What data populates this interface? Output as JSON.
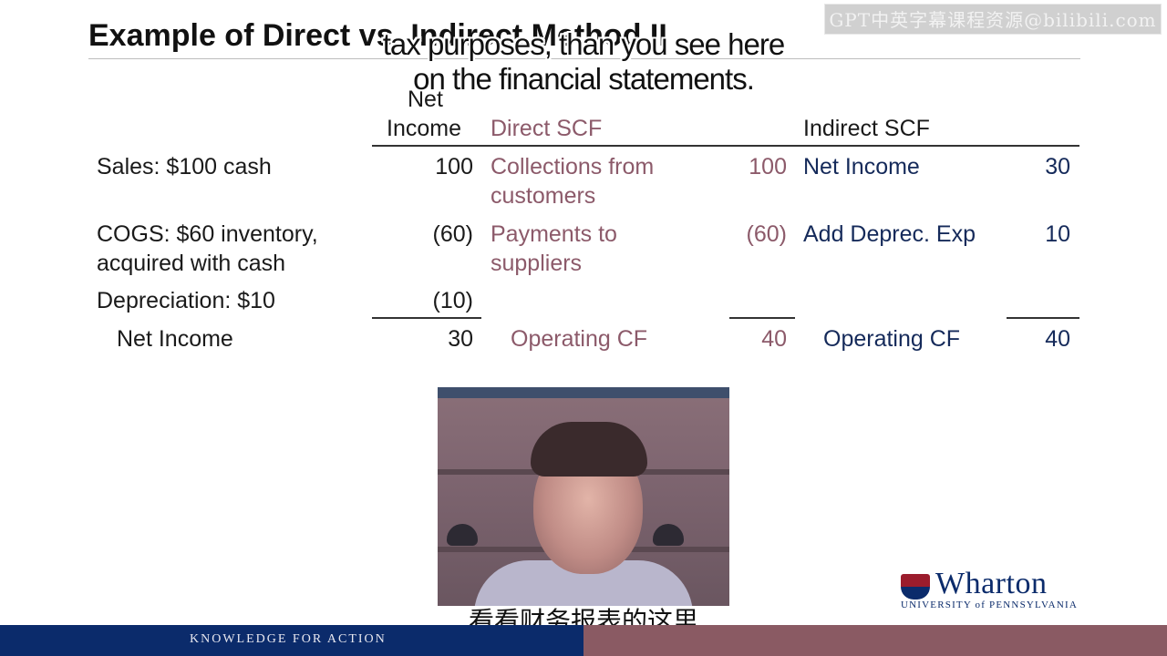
{
  "slide": {
    "title": "Example of Direct vs. Indirect Method II",
    "watermark": "GPT中英字幕课程资源@bilibili.com"
  },
  "subtitles": {
    "line1": "tax purposes, than you see here",
    "line2": "on the financial statements.",
    "chinese": "看看财务报表的这里"
  },
  "table": {
    "headers": {
      "net_income_1": "Net",
      "net_income_2": "Income",
      "direct": "Direct SCF",
      "indirect": "Indirect SCF"
    },
    "rows": [
      {
        "label_1": "Sales: $100 cash",
        "label_2": "",
        "ni": "100",
        "direct_1": "Collections from",
        "direct_2": "customers",
        "direct_val": "100",
        "indirect_label": "Net Income",
        "indirect_val": "30"
      },
      {
        "label_1": "COGS: $60 inventory,",
        "label_2": "acquired with cash",
        "ni": "(60)",
        "direct_1": "Payments to",
        "direct_2": "suppliers",
        "direct_val": "(60)",
        "indirect_label": "Add Deprec. Exp",
        "indirect_val": "10"
      },
      {
        "label_1": "Depreciation: $10",
        "label_2": "",
        "ni": "(10)",
        "direct_1": "",
        "direct_2": "",
        "direct_val": "",
        "indirect_label": "",
        "indirect_val": ""
      }
    ],
    "totals": {
      "label": "Net Income",
      "ni": "30",
      "direct_label": "Operating CF",
      "direct_val": "40",
      "indirect_label": "Operating CF",
      "indirect_val": "40"
    }
  },
  "branding": {
    "logo_word": "Wharton",
    "logo_sub": "UNIVERSITY of PENNSYLVANIA",
    "footer": "KNOWLEDGE FOR ACTION"
  },
  "colors": {
    "navy": "#0b2b6b",
    "maroon": "#8a5a63",
    "direct_text": "#8c5a6a"
  }
}
